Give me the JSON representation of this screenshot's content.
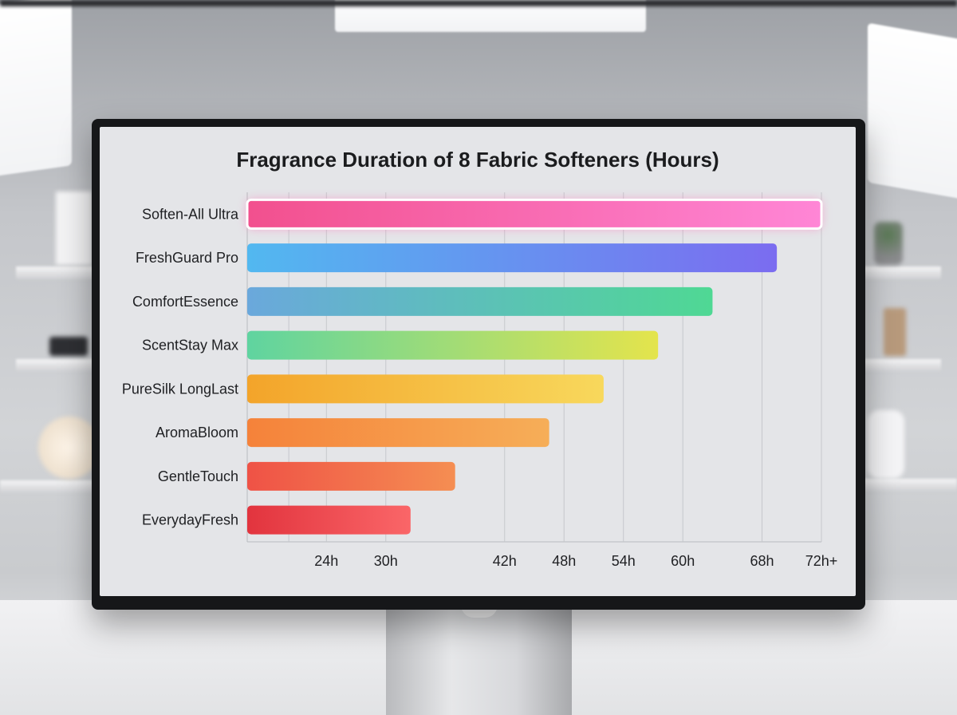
{
  "chart_data": {
    "type": "bar",
    "orientation": "horizontal",
    "title": "Fragrance Duration of 8 Fabric Softeners (Hours)",
    "xlabel": "",
    "ylabel": "",
    "categories": [
      "Soften-All Ultra",
      "FreshGuard Pro",
      "ComfortEssence",
      "ScentStay Max",
      "PureSilk LongLast",
      "AromaBloom",
      "GentleTouch",
      "EverydayFresh"
    ],
    "values": [
      74,
      69.5,
      63,
      57.5,
      52,
      46.5,
      37,
      32.5
    ],
    "x_ticks": [
      {
        "value": 24,
        "label": "24h"
      },
      {
        "value": 30,
        "label": "30h"
      },
      {
        "value": 42,
        "label": "42h"
      },
      {
        "value": 48,
        "label": "48h"
      },
      {
        "value": 54,
        "label": "54h"
      },
      {
        "value": 60,
        "label": "60h"
      },
      {
        "value": 68,
        "label": "68h"
      },
      {
        "value": 74,
        "label": "72h+"
      }
    ],
    "xlim": [
      16,
      74
    ],
    "grid": true,
    "highlighted_category": "Soften-All Ultra",
    "bar_colors": [
      [
        "#f2508e",
        "#ff86d6"
      ],
      [
        "#52b8f0",
        "#7b6cf0"
      ],
      [
        "#6aa8dc",
        "#4fd894"
      ],
      [
        "#5fd4a0",
        "#e4e44c"
      ],
      [
        "#f3a42a",
        "#f8d85c"
      ],
      [
        "#f5823a",
        "#f6ae58"
      ],
      [
        "#ef5246",
        "#f58e52"
      ],
      [
        "#e2343e",
        "#fa6668"
      ]
    ]
  }
}
